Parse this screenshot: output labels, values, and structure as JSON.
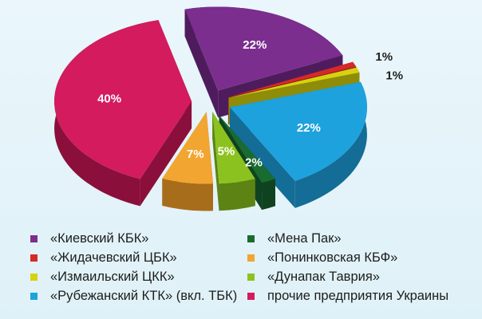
{
  "chart_data": {
    "type": "pie",
    "title": "",
    "slices": [
      {
        "name": "«Киевский КБК»",
        "value": 22,
        "label": "22%",
        "color": "#7b2e8e",
        "side": "#4e1c5c"
      },
      {
        "name": "«Жидачевский ЦБК»",
        "value": 1,
        "label": "1%",
        "color": "#d52a2a",
        "side": "#8c1717"
      },
      {
        "name": "«Измаильский ЦКК»",
        "value": 1,
        "label": "1%",
        "color": "#d6d20f",
        "side": "#8f8c0a"
      },
      {
        "name": "«Рубежанский КТК» (вкл. ТБК)",
        "value": 22,
        "label": "22%",
        "color": "#1ea2dd",
        "side": "#136d96"
      },
      {
        "name": "«Мена Пак»",
        "value": 2,
        "label": "2%",
        "color": "#1a6b2f",
        "side": "#0f4320"
      },
      {
        "name": "«Дунапак Таврия»",
        "value": 5,
        "label": "5%",
        "color": "#8cc21f",
        "side": "#5c8314"
      },
      {
        "name": "«Понинковская  КБФ»",
        "value": 7,
        "label": "7%",
        "color": "#f2a531",
        "side": "#a86d1b"
      },
      {
        "name": "прочие предприятия Украины",
        "value": 40,
        "label": "40%",
        "color": "#d31b5d",
        "side": "#8b0f3b"
      }
    ],
    "legend": {
      "placement": "bottom",
      "columns": [
        [
          "«Киевский КБК»",
          "«Жидачевский ЦБК»",
          "«Измаильский ЦКК»",
          "«Рубежанский КТК» (вкл. ТБК)"
        ],
        [
          "«Мена Пак»",
          "«Понинковская  КБФ»",
          "«Дунапак Таврия»",
          "прочие предприятия Украины"
        ]
      ]
    }
  },
  "legend_items": [
    {
      "label": "«Киевский КБК»",
      "color": "#7b2e8e"
    },
    {
      "label": "«Мена Пак»",
      "color": "#1a6b2f"
    },
    {
      "label": "«Жидачевский ЦБК»",
      "color": "#d52a2a"
    },
    {
      "label": "«Понинковская  КБФ»",
      "color": "#f2a531"
    },
    {
      "label": "«Измаильский ЦКК»",
      "color": "#d6d20f"
    },
    {
      "label": "«Дунапак Таврия»",
      "color": "#8cc21f"
    },
    {
      "label": "«Рубежанский КТК» (вкл. ТБК)",
      "color": "#1ea2dd"
    },
    {
      "label": "прочие предприятия Украины",
      "color": "#d31b5d"
    }
  ]
}
